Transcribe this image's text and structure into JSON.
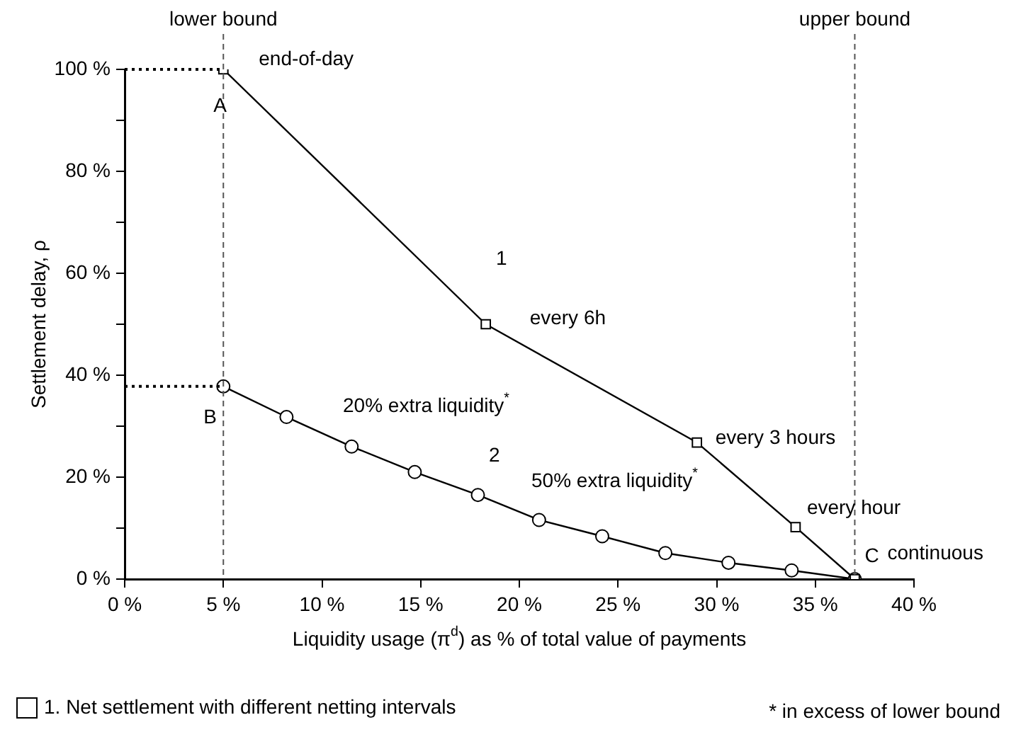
{
  "chart_data": {
    "type": "line",
    "xlabel": "Liquidity usage (π$^{d}$) as % of total value of payments",
    "ylabel": "Settlement delay, ρ",
    "xlim": [
      0,
      40
    ],
    "xticks": [
      {
        "value": 0,
        "label": "0 %"
      },
      {
        "value": 5,
        "label": "5 %"
      },
      {
        "value": 10,
        "label": "10 %"
      },
      {
        "value": 15,
        "label": "15 %"
      },
      {
        "value": 20,
        "label": "20 %"
      },
      {
        "value": 25,
        "label": "25 %"
      },
      {
        "value": 30,
        "label": "30 %"
      },
      {
        "value": 35,
        "label": "35 %"
      },
      {
        "value": 40,
        "label": "40 %"
      }
    ],
    "ylim": [
      0,
      100
    ],
    "yticks": [
      {
        "value": 0,
        "label": "0 %"
      },
      {
        "value": 20,
        "label": "20 %"
      },
      {
        "value": 40,
        "label": "40 %"
      },
      {
        "value": 60,
        "label": "60 %"
      },
      {
        "value": 80,
        "label": "80 %"
      },
      {
        "value": 100,
        "label": "100 %"
      }
    ],
    "grid": false,
    "legend": "bottom left",
    "line_style": "solid",
    "series": [
      {
        "name": "1. Net settlement with different netting intervals",
        "color": "#000000",
        "marker": "square",
        "x": [
          5,
          18.3,
          29,
          34,
          37
        ],
        "values": [
          100,
          50,
          26.8,
          10.2,
          0
        ]
      },
      {
        "color": "#000000",
        "marker": "circle",
        "x": [
          5,
          8.2,
          11.5,
          14.7,
          17.9,
          21,
          24.2,
          27.4,
          30.6,
          33.8,
          37
        ],
        "values": [
          37.8,
          31.8,
          26,
          21,
          16.5,
          11.6,
          8.4,
          5.1,
          3.2,
          1.7,
          0
        ]
      }
    ],
    "ref_lines": [
      {
        "axis": "x",
        "value": 5,
        "label": "lower bound",
        "color": "#555555",
        "line_style": "dashed"
      },
      {
        "axis": "x",
        "value": 37,
        "label": "upper bound",
        "color": "#555555",
        "line_style": "dashed"
      },
      {
        "axis": "y",
        "value": 100,
        "color": "#000000",
        "line_style": "dotted"
      },
      {
        "axis": "y",
        "value": 37.8,
        "color": "#000000",
        "line_style": "dotted"
      }
    ],
    "annotations": [
      {
        "text": "end-of-day",
        "x": 5,
        "y": 100
      },
      {
        "text": "A",
        "x": 5,
        "y": 100
      },
      {
        "text": "every 6h",
        "x": 18.3,
        "y": 50
      },
      {
        "text": "B",
        "x": 5,
        "y": 37.8
      },
      {
        "text": "every 3 hours",
        "x": 29,
        "y": 26.8
      },
      {
        "text": "every hour",
        "x": 34,
        "y": 10.2
      },
      {
        "text": "C",
        "x": 37,
        "y": 0
      },
      {
        "text": "continuous",
        "x": 37,
        "y": 0
      },
      "1",
      "20% extra liquidity$^{*}$",
      "2",
      "50% extra liquidity$^{*}$",
      "* in excess of lower bound"
    ]
  }
}
